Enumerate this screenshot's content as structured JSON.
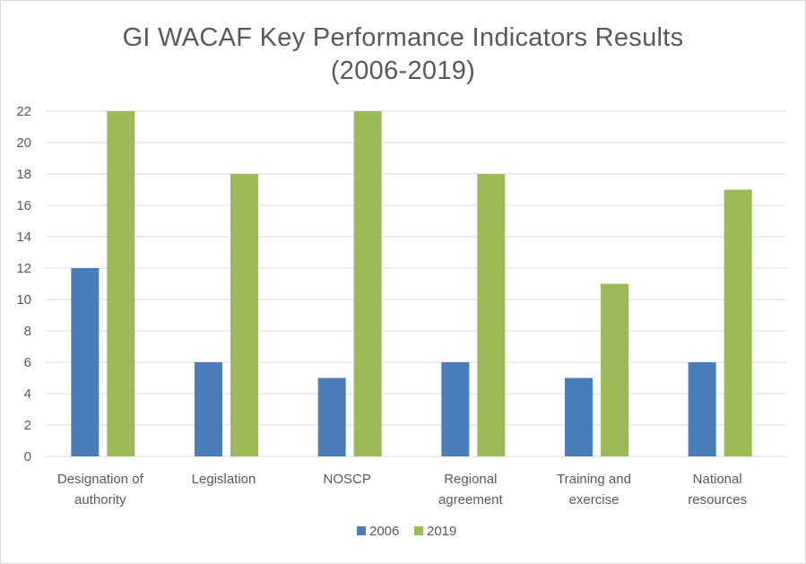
{
  "chart_data": {
    "type": "bar",
    "title": [
      "GI WACAF Key Performance Indicators Results",
      "(2006-2019)"
    ],
    "categories": [
      [
        "Designation of",
        "authority"
      ],
      [
        "Legislation"
      ],
      [
        "NOSCP"
      ],
      [
        "Regional",
        "agreement"
      ],
      [
        "Training and",
        "exercise"
      ],
      [
        "National",
        "resources"
      ]
    ],
    "series": [
      {
        "name": "2006",
        "color": "#4a7ebb",
        "values": [
          12,
          6,
          5,
          6,
          5,
          6
        ]
      },
      {
        "name": "2019",
        "color": "#9bbb59",
        "values": [
          22,
          18,
          22,
          18,
          11,
          17
        ]
      }
    ],
    "ylim": [
      0,
      22
    ],
    "yticks": [
      0,
      2,
      4,
      6,
      8,
      10,
      12,
      14,
      16,
      18,
      20,
      22
    ],
    "xlabel": "",
    "ylabel": "",
    "grid": true,
    "legend_position": "bottom",
    "gridline_color": "#d9d9d9"
  }
}
